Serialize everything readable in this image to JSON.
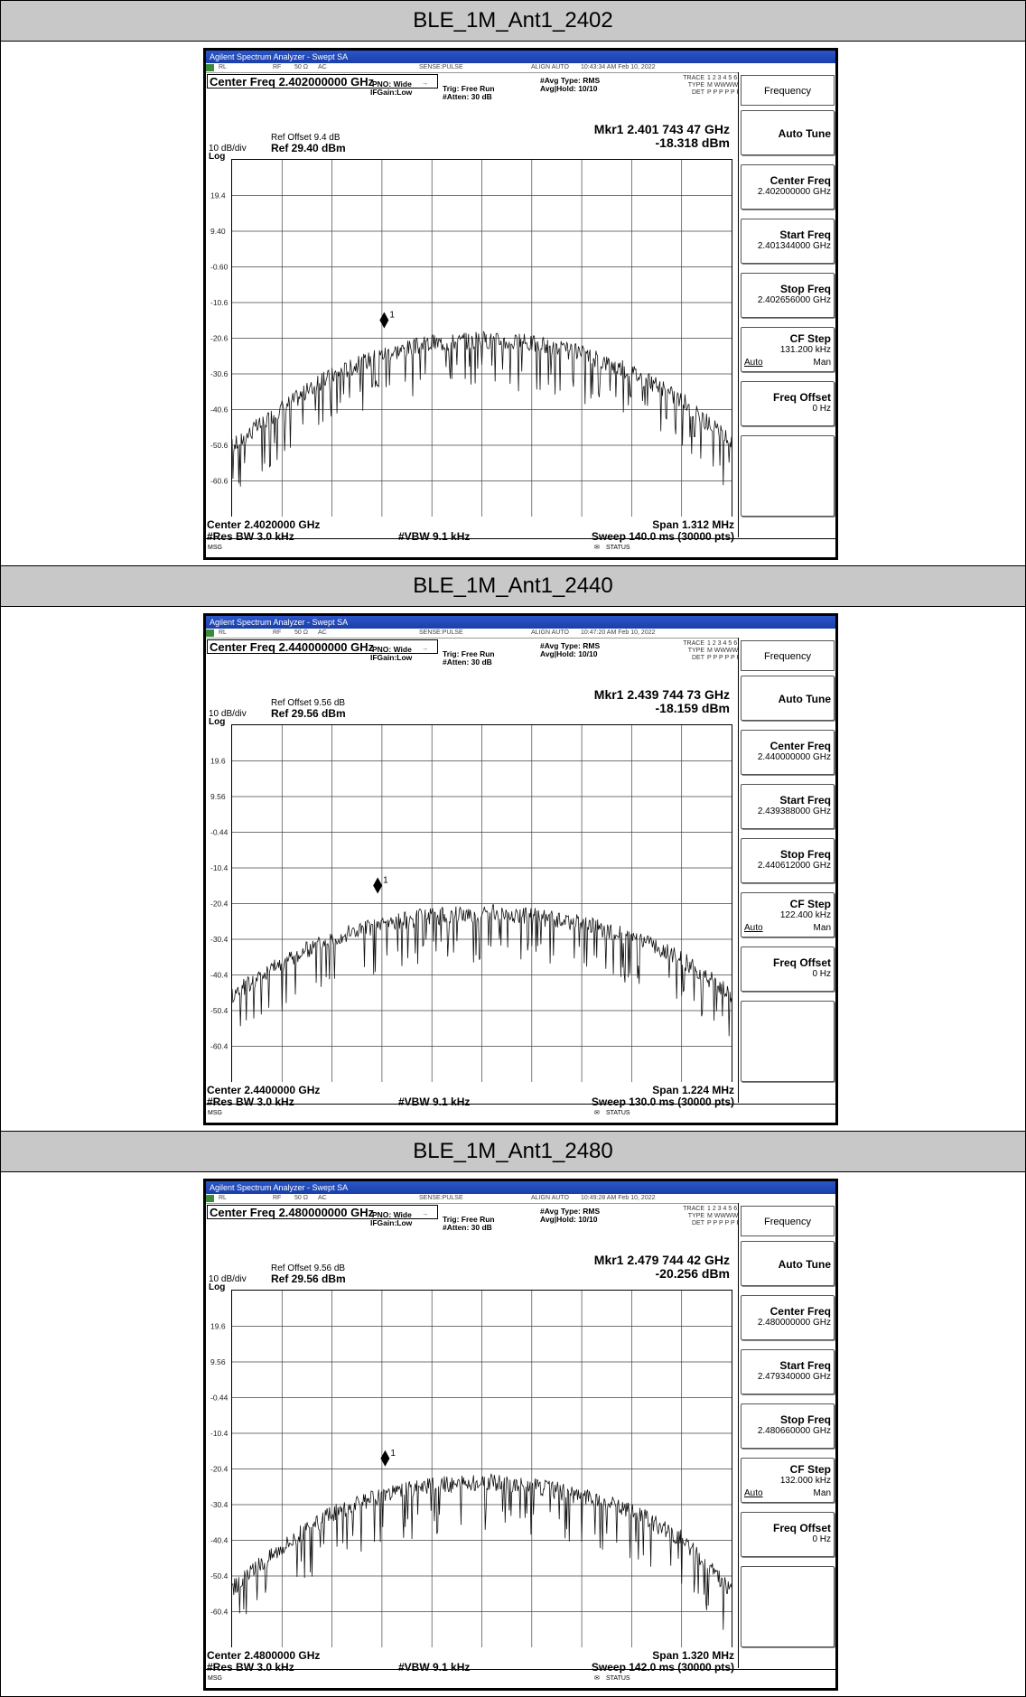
{
  "app": {
    "title": "Agilent Spectrum Analyzer - Swept SA",
    "status_rl": "RL",
    "status_rf": "RF",
    "status_imp": "50 Ω",
    "status_ac": "AC",
    "status_sense": "SENSE:PULSE",
    "status_align": "ALIGN AUTO",
    "trace_label": "TRACE",
    "trace_nums": "1 2 3 4 5 6",
    "type_label": "TYPE",
    "type_vals": "M WWWWW",
    "det_label": "DET",
    "det_vals": "P P P P P P",
    "pno": "PNO: Wide",
    "ifgain": "IFGain:Low",
    "trig": "Trig: Free Run",
    "atten": "#Atten: 30 dB",
    "avg_type": "#Avg Type: RMS",
    "avg_hold": "Avg|Hold: 10/10",
    "scale": "10 dB/div",
    "log": "Log",
    "res_bw": "#Res BW 3.0 kHz",
    "vbw": "#VBW 9.1 kHz",
    "msg": "MSG",
    "status_text": "STATUS",
    "marker_id": "1",
    "panel_title": "Frequency",
    "auto_tune": "Auto Tune",
    "center_label": "Center Freq",
    "start_label": "Start Freq",
    "stop_label": "Stop Freq",
    "cfstep_label": "CF Step",
    "auto_label": "Auto",
    "man_label": "Man",
    "offset_label": "Freq Offset",
    "offset_value": "0 Hz"
  },
  "sections": [
    {
      "header": "BLE_1M_Ant1_2402",
      "timestamp": "10:43:34 AM Feb 10, 2022",
      "center_freq_box": "Center Freq 2.402000000 GHz",
      "ref_offset": "Ref Offset 9.4 dB",
      "ref_level": "Ref 29.40 dBm",
      "marker_freq": "Mkr1 2.401 743 47 GHz",
      "marker_level": "-18.318 dBm",
      "center_bottom": "Center 2.4020000 GHz",
      "span": "Span 1.312 MHz",
      "sweep": "Sweep  140.0 ms (30000 pts)",
      "center_value": "2.402000000 GHz",
      "start_value": "2.401344000 GHz",
      "stop_value": "2.402656000 GHz",
      "cf_step_value": "131.200 kHz",
      "y_ticks": [
        "19.4",
        "9.40",
        "-0.60",
        "-10.6",
        "-20.6",
        "-30.6",
        "-40.6",
        "-50.6",
        "-60.6"
      ]
    },
    {
      "header": "BLE_1M_Ant1_2440",
      "timestamp": "10:47:20 AM Feb 10, 2022",
      "center_freq_box": "Center Freq 2.440000000 GHz",
      "ref_offset": "Ref Offset 9.56 dB",
      "ref_level": "Ref 29.56 dBm",
      "marker_freq": "Mkr1 2.439 744 73 GHz",
      "marker_level": "-18.159 dBm",
      "center_bottom": "Center 2.4400000 GHz",
      "span": "Span 1.224 MHz",
      "sweep": "Sweep  130.0 ms (30000 pts)",
      "center_value": "2.440000000 GHz",
      "start_value": "2.439388000 GHz",
      "stop_value": "2.440612000 GHz",
      "cf_step_value": "122.400 kHz",
      "y_ticks": [
        "19.6",
        "9.56",
        "-0.44",
        "-10.4",
        "-20.4",
        "-30.4",
        "-40.4",
        "-50.4",
        "-60.4"
      ]
    },
    {
      "header": "BLE_1M_Ant1_2480",
      "timestamp": "10:49:28 AM Feb 10, 2022",
      "center_freq_box": "Center Freq 2.480000000 GHz",
      "ref_offset": "Ref Offset 9.56 dB",
      "ref_level": "Ref 29.56 dBm",
      "marker_freq": "Mkr1 2.479 744 42 GHz",
      "marker_level": "-20.256 dBm",
      "center_bottom": "Center 2.4800000 GHz",
      "span": "Span 1.320 MHz",
      "sweep": "Sweep  142.0 ms (30000 pts)",
      "center_value": "2.480000000 GHz",
      "start_value": "2.479340000 GHz",
      "stop_value": "2.480660000 GHz",
      "cf_step_value": "132.000 kHz",
      "y_ticks": [
        "19.6",
        "9.56",
        "-0.44",
        "-10.4",
        "-20.4",
        "-30.4",
        "-40.4",
        "-50.4",
        "-60.4"
      ]
    }
  ],
  "chart_data": [
    {
      "type": "line",
      "xlabel": "Center 2.4020000 GHz",
      "ylabel": "Ref 29.40 dBm",
      "ylim": [
        -70.6,
        29.4
      ],
      "xlim": [
        2.401344,
        2.402656
      ],
      "grid": true,
      "y_ticks": [
        19.4,
        9.4,
        -0.6,
        -10.6,
        -20.6,
        -30.6,
        -40.6,
        -50.6,
        -60.6
      ],
      "series": [
        {
          "x": [
            2.401344,
            2.401475,
            2.401606,
            2.401738,
            2.401869,
            2.402,
            2.402131,
            2.402262,
            2.402394,
            2.402525,
            2.402656
          ],
          "values": [
            -51,
            -40,
            -31,
            -25,
            -22,
            -21,
            -22,
            -25,
            -30,
            -38,
            -50
          ]
        }
      ],
      "markers": [
        {
          "label": "1",
          "x": 2.40174347,
          "y": -18.318
        }
      ]
    },
    {
      "type": "line",
      "xlabel": "Center 2.4400000 GHz",
      "ylabel": "Ref 29.56 dBm",
      "ylim": [
        -70.44,
        29.56
      ],
      "xlim": [
        2.439388,
        2.440612
      ],
      "grid": true,
      "y_ticks": [
        19.56,
        9.56,
        -0.44,
        -10.44,
        -20.44,
        -30.44,
        -40.44,
        -50.44,
        -60.44
      ],
      "series": [
        {
          "x": [
            2.439388,
            2.43951,
            2.439633,
            2.439755,
            2.439878,
            2.44,
            2.440122,
            2.440245,
            2.440367,
            2.44049,
            2.440612
          ],
          "values": [
            -46,
            -37,
            -30,
            -26,
            -24,
            -23,
            -24,
            -26,
            -30,
            -36,
            -46
          ]
        }
      ],
      "markers": [
        {
          "label": "1",
          "x": 2.43974473,
          "y": -18.159
        }
      ]
    },
    {
      "type": "line",
      "xlabel": "Center 2.4800000 GHz",
      "ylabel": "Ref 29.56 dBm",
      "ylim": [
        -70.44,
        29.56
      ],
      "xlim": [
        2.47934,
        2.48066
      ],
      "grid": true,
      "y_ticks": [
        19.56,
        9.56,
        -0.44,
        -10.44,
        -20.44,
        -30.44,
        -40.44,
        -50.44,
        -60.44
      ],
      "series": [
        {
          "x": [
            2.47934,
            2.479472,
            2.479604,
            2.479736,
            2.479868,
            2.48,
            2.480132,
            2.480264,
            2.480396,
            2.480528,
            2.48066
          ],
          "values": [
            -54,
            -42,
            -33,
            -28,
            -25,
            -24,
            -25,
            -28,
            -32,
            -40,
            -55
          ]
        }
      ],
      "markers": [
        {
          "label": "1",
          "x": 2.47974442,
          "y": -20.256
        }
      ]
    }
  ]
}
